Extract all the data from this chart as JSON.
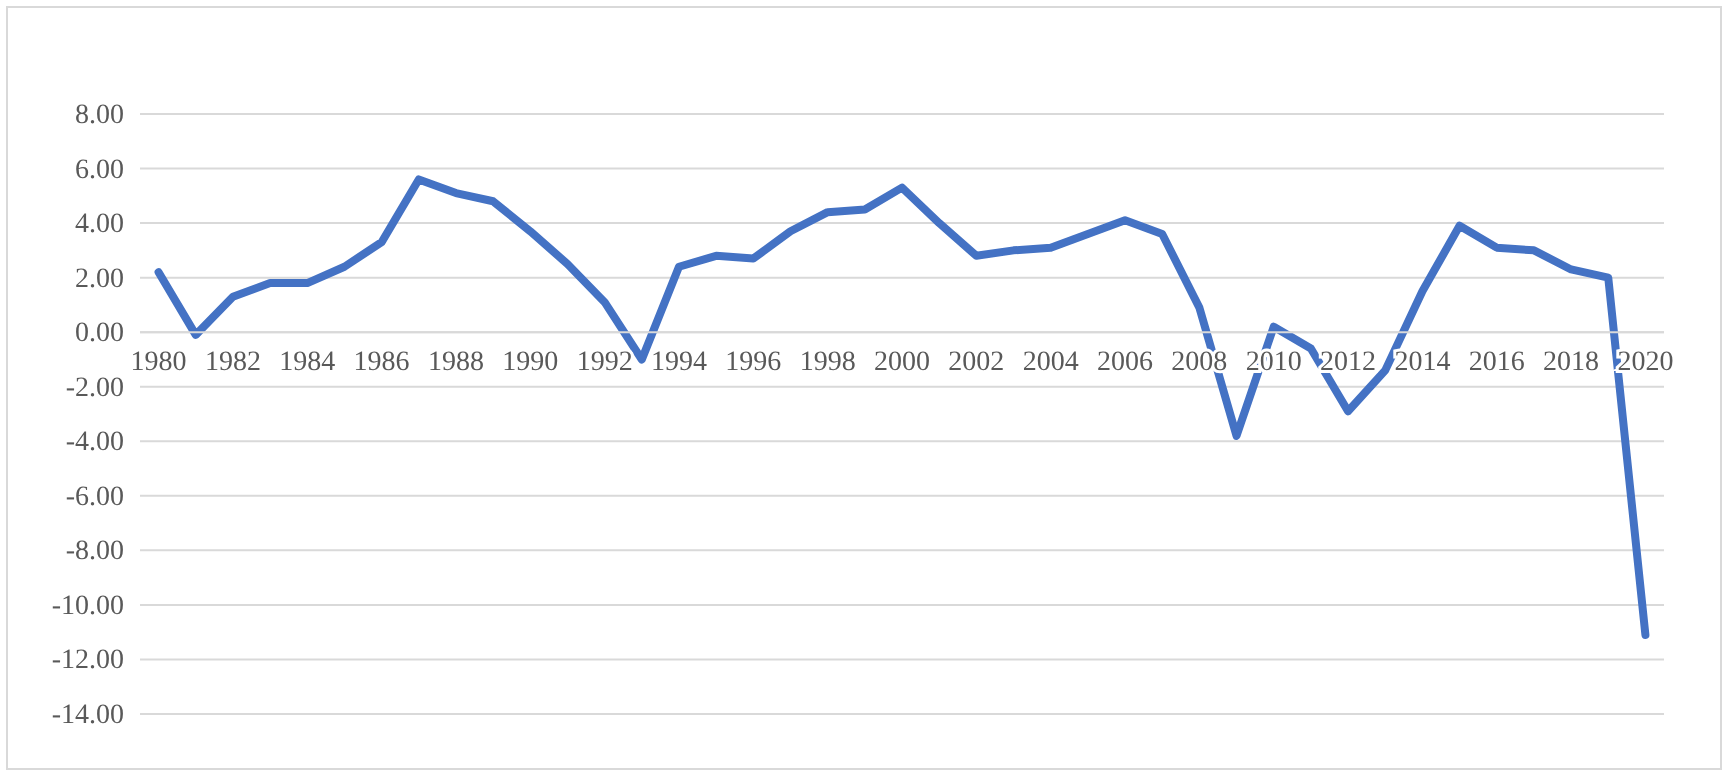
{
  "chart_data": {
    "type": "line",
    "categories": [
      "1980",
      null,
      "1982",
      null,
      "1984",
      null,
      "1986",
      null,
      "1988",
      null,
      "1990",
      null,
      "1992",
      null,
      "1994",
      null,
      "1996",
      null,
      "1998",
      null,
      "2000",
      null,
      "2002",
      null,
      "2004",
      null,
      "2006",
      null,
      "2008",
      null,
      "2010",
      null,
      "2012",
      null,
      "2014",
      null,
      "2016",
      null,
      "2018",
      null,
      "2020"
    ],
    "series": [
      {
        "color": "#4472c4",
        "values": [
          2.2,
          -0.1,
          1.3,
          1.8,
          1.8,
          2.4,
          3.3,
          5.6,
          5.1,
          4.8,
          3.7,
          2.5,
          1.1,
          -1.0,
          2.4,
          2.8,
          2.7,
          3.7,
          4.4,
          4.5,
          5.3,
          4.0,
          2.8,
          3.0,
          3.1,
          3.6,
          4.1,
          3.6,
          0.9,
          -3.8,
          0.2,
          -0.6,
          -2.9,
          -1.4,
          1.5,
          3.9,
          3.1,
          3.0,
          2.3,
          2.0,
          -11.1
        ]
      }
    ],
    "ylim": [
      -14,
      8
    ],
    "yticks": [
      {
        "value": -14,
        "label": "-14.00"
      },
      {
        "value": -12,
        "label": "-12.00"
      },
      {
        "value": -10,
        "label": "-10.00"
      },
      {
        "value": -8,
        "label": "-8.00"
      },
      {
        "value": -6,
        "label": "-6.00"
      },
      {
        "value": -4,
        "label": "-4.00"
      },
      {
        "value": -2,
        "label": "-2.00"
      },
      {
        "value": 0,
        "label": "0.00"
      },
      {
        "value": 2,
        "label": "2.00"
      },
      {
        "value": 4,
        "label": "4.00"
      },
      {
        "value": 6,
        "label": "6.00"
      },
      {
        "value": 8,
        "label": "8.00"
      }
    ],
    "grid": "y",
    "marker": "none",
    "line_style": "solid"
  }
}
